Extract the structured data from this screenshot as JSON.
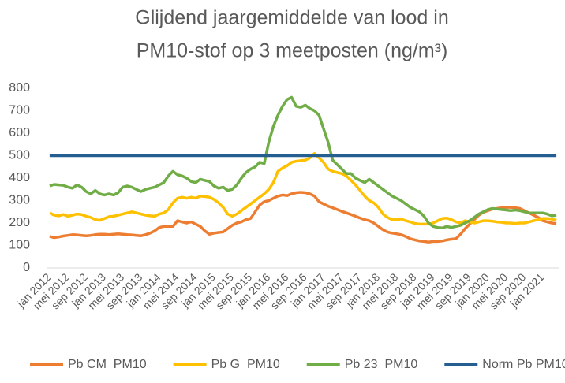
{
  "chart_data": {
    "type": "line",
    "title": [
      "Glijdend jaargemiddelde van lood in",
      "PM10-stof op 3 meetposten (ng/m³)"
    ],
    "categories": [
      "jan 2012",
      null,
      null,
      null,
      "mei 2012",
      null,
      null,
      null,
      "sep 2012",
      null,
      null,
      null,
      "jan 2013",
      null,
      null,
      null,
      "mei 2013",
      null,
      null,
      null,
      "sep 2013",
      null,
      null,
      null,
      "jan 2014",
      null,
      null,
      null,
      "mei 2014",
      null,
      null,
      null,
      "sep 2014",
      null,
      null,
      null,
      "jan 2015",
      null,
      null,
      null,
      "mei 2015",
      null,
      null,
      null,
      "sep 2015",
      null,
      null,
      null,
      "jan 2016",
      null,
      null,
      null,
      "mei 2016",
      null,
      null,
      null,
      "sep 2016",
      null,
      null,
      null,
      "jan 2017",
      null,
      null,
      null,
      "mei 2017",
      null,
      null,
      null,
      "sep 2017",
      null,
      null,
      null,
      "jan 2018",
      null,
      null,
      null,
      "mei 2018",
      null,
      null,
      null,
      "sep 2018",
      null,
      null,
      null,
      "jan 2019",
      null,
      null,
      null,
      "mei 2019",
      null,
      null,
      null,
      "sep 2019",
      null,
      null,
      null,
      "jan 2020",
      null,
      null,
      null,
      "mei 2020",
      null,
      null,
      null,
      "sep 2020",
      null,
      null,
      null,
      "jan 2021",
      null,
      null,
      null
    ],
    "series": [
      {
        "name": "Pb CM_PM10",
        "color": "#ed7d31",
        "values": [
          140,
          135,
          138,
          142,
          145,
          148,
          147,
          145,
          143,
          145,
          148,
          150,
          150,
          148,
          150,
          152,
          150,
          148,
          147,
          145,
          143,
          148,
          155,
          165,
          180,
          185,
          185,
          185,
          210,
          205,
          200,
          205,
          195,
          185,
          165,
          150,
          155,
          158,
          160,
          175,
          190,
          200,
          205,
          215,
          220,
          250,
          280,
          295,
          300,
          310,
          320,
          325,
          322,
          330,
          335,
          337,
          335,
          330,
          320,
          295,
          285,
          275,
          268,
          260,
          252,
          245,
          238,
          230,
          222,
          215,
          210,
          200,
          185,
          170,
          160,
          155,
          152,
          148,
          140,
          130,
          125,
          120,
          118,
          115,
          118,
          118,
          120,
          125,
          128,
          130,
          150,
          175,
          195,
          215,
          235,
          248,
          255,
          262,
          265,
          268,
          270,
          270,
          268,
          265,
          255,
          245,
          235,
          225,
          210,
          205,
          200,
          198
        ]
      },
      {
        "name": "Pb G_PM10",
        "color": "#ffc000",
        "values": [
          245,
          235,
          232,
          238,
          230,
          235,
          240,
          238,
          230,
          225,
          215,
          212,
          220,
          228,
          230,
          235,
          240,
          245,
          250,
          245,
          240,
          235,
          232,
          230,
          240,
          245,
          260,
          290,
          310,
          315,
          310,
          315,
          310,
          320,
          318,
          315,
          305,
          290,
          270,
          240,
          230,
          240,
          255,
          270,
          285,
          300,
          315,
          330,
          350,
          380,
          430,
          445,
          455,
          470,
          475,
          478,
          480,
          490,
          510,
          490,
          470,
          440,
          430,
          425,
          420,
          410,
          390,
          370,
          345,
          320,
          300,
          290,
          270,
          240,
          225,
          215,
          215,
          218,
          210,
          205,
          198,
          195,
          195,
          195,
          200,
          210,
          220,
          222,
          215,
          205,
          200,
          210,
          205,
          200,
          205,
          210,
          210,
          208,
          205,
          203,
          200,
          200,
          198,
          200,
          200,
          205,
          210,
          215,
          220,
          220,
          218,
          212
        ]
      },
      {
        "name": "Pb 23_PM10",
        "color": "#70ad47",
        "values": [
          365,
          372,
          370,
          368,
          360,
          355,
          370,
          360,
          340,
          330,
          345,
          330,
          325,
          330,
          325,
          335,
          360,
          365,
          360,
          350,
          340,
          350,
          355,
          360,
          370,
          380,
          410,
          430,
          415,
          410,
          400,
          385,
          380,
          395,
          390,
          385,
          365,
          355,
          360,
          345,
          350,
          370,
          400,
          425,
          440,
          450,
          470,
          465,
          560,
          630,
          680,
          720,
          750,
          760,
          720,
          715,
          725,
          710,
          700,
          680,
          620,
          560,
          480,
          460,
          440,
          420,
          420,
          400,
          390,
          380,
          395,
          380,
          365,
          350,
          335,
          320,
          310,
          300,
          285,
          270,
          260,
          250,
          230,
          200,
          185,
          180,
          178,
          185,
          180,
          185,
          190,
          200,
          210,
          225,
          240,
          250,
          260,
          265,
          262,
          260,
          258,
          255,
          258,
          255,
          250,
          245,
          245,
          245,
          245,
          240,
          232,
          235
        ]
      },
      {
        "name": "Norm Pb PM10",
        "color": "#255e91",
        "values": [
          500,
          500,
          500,
          500,
          500,
          500,
          500,
          500,
          500,
          500,
          500,
          500,
          500,
          500,
          500,
          500,
          500,
          500,
          500,
          500,
          500,
          500,
          500,
          500,
          500,
          500,
          500,
          500,
          500,
          500,
          500,
          500,
          500,
          500,
          500,
          500,
          500,
          500,
          500,
          500,
          500,
          500,
          500,
          500,
          500,
          500,
          500,
          500,
          500,
          500,
          500,
          500,
          500,
          500,
          500,
          500,
          500,
          500,
          500,
          500,
          500,
          500,
          500,
          500,
          500,
          500,
          500,
          500,
          500,
          500,
          500,
          500,
          500,
          500,
          500,
          500,
          500,
          500,
          500,
          500,
          500,
          500,
          500,
          500,
          500,
          500,
          500,
          500,
          500,
          500,
          500,
          500,
          500,
          500,
          500,
          500,
          500,
          500,
          500,
          500,
          500,
          500,
          500,
          500,
          500,
          500,
          500,
          500,
          500,
          500,
          500,
          500
        ]
      }
    ],
    "ylim": [
      0,
      800
    ],
    "yticks": [
      0,
      100,
      200,
      300,
      400,
      500,
      600,
      700,
      800
    ],
    "grid": false,
    "legend": "bottom"
  }
}
